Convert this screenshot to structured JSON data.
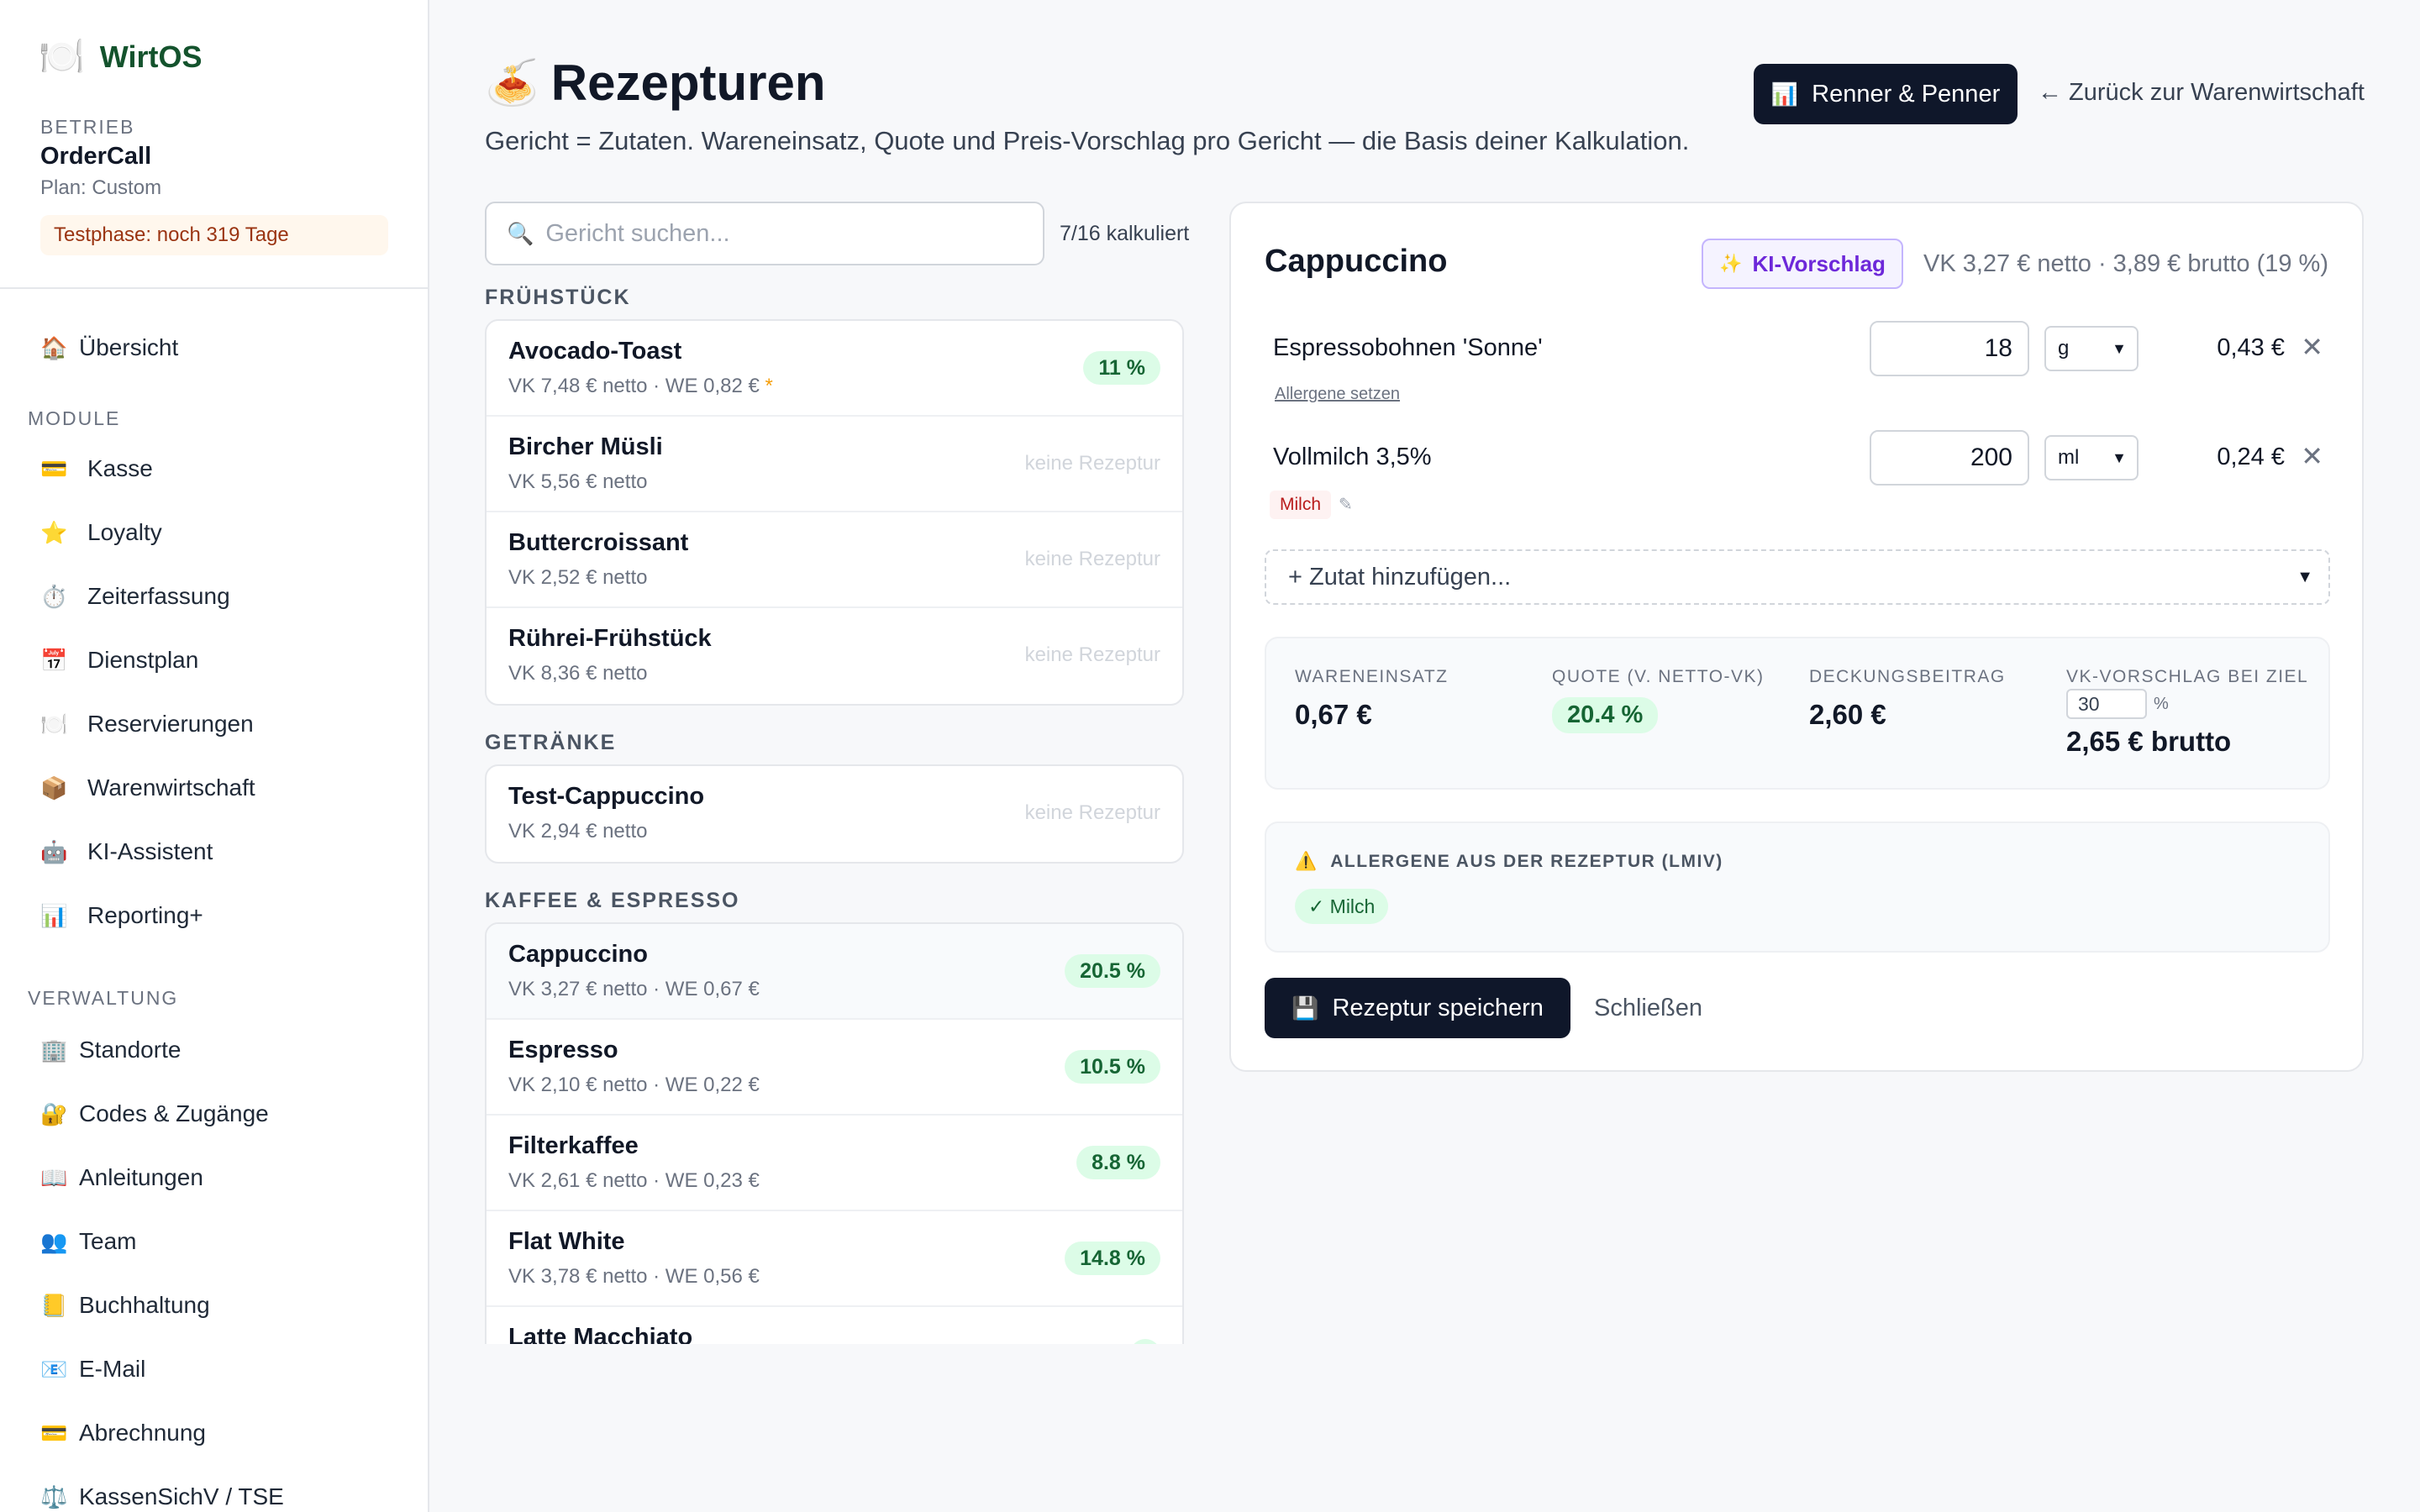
{
  "sidebar": {
    "brand_icon": "🍽️",
    "brand_name": "WirtOS",
    "betrieb_label": "BETRIEB",
    "betrieb_name": "OrderCall",
    "plan": "Plan: Custom",
    "trial": "Testphase: noch 319 Tage",
    "overview": {
      "icon": "🏠",
      "label": "Übersicht"
    },
    "module_label": "MODULE",
    "modules": [
      {
        "icon": "💳",
        "label": "Kasse"
      },
      {
        "icon": "⭐",
        "label": "Loyalty"
      },
      {
        "icon": "⏱️",
        "label": "Zeiterfassung"
      },
      {
        "icon": "📅",
        "label": "Dienstplan"
      },
      {
        "icon": "🍽️",
        "label": "Reservierungen"
      },
      {
        "icon": "📦",
        "label": "Warenwirtschaft"
      },
      {
        "icon": "🤖",
        "label": "KI-Assistent"
      },
      {
        "icon": "📊",
        "label": "Reporting+"
      }
    ],
    "admin_label": "VERWALTUNG",
    "admin": [
      {
        "icon": "🏢",
        "label": "Standorte"
      },
      {
        "icon": "🔐",
        "label": "Codes & Zugänge"
      },
      {
        "icon": "📖",
        "label": "Anleitungen"
      },
      {
        "icon": "👥",
        "label": "Team"
      },
      {
        "icon": "📒",
        "label": "Buchhaltung"
      },
      {
        "icon": "📧",
        "label": "E-Mail"
      },
      {
        "icon": "💳",
        "label": "Abrechnung"
      },
      {
        "icon": "⚖️",
        "label": "KassenSichV / TSE"
      }
    ]
  },
  "header": {
    "icon": "🍝",
    "title": "Rezepturen",
    "subtitle": "Gericht = Zutaten. Wareneinsatz, Quote und Preis-Vorschlag pro Gericht — die Basis deiner Kalkulation.",
    "renner_icon": "📊",
    "renner_label": "Renner & Penner",
    "back_label": "← Zurück zur Warenwirtschaft"
  },
  "search": {
    "icon": "🔍",
    "placeholder": "Gericht suchen...",
    "count": "7/16 kalkuliert"
  },
  "groups": [
    {
      "label": "FRÜHSTÜCK",
      "items": [
        {
          "name": "Avocado-Toast",
          "sub": "VK 7,48 € netto · WE 0,82 € ",
          "star": "*",
          "badge": "11 %"
        },
        {
          "name": "Bircher Müsli",
          "sub": "VK 5,56 € netto",
          "none": "keine Rezeptur"
        },
        {
          "name": "Buttercroissant",
          "sub": "VK 2,52 € netto",
          "none": "keine Rezeptur"
        },
        {
          "name": "Rührei-Frühstück",
          "sub": "VK 8,36 € netto",
          "none": "keine Rezeptur"
        }
      ]
    },
    {
      "label": "GETRÄNKE",
      "items": [
        {
          "name": "Test-Cappuccino",
          "sub": "VK 2,94 € netto",
          "none": "keine Rezeptur"
        }
      ]
    },
    {
      "label": "KAFFEE & ESPRESSO",
      "items": [
        {
          "name": "Cappuccino",
          "sub": "VK 3,27 € netto · WE 0,67 €",
          "badge": "20.5 %"
        },
        {
          "name": "Espresso",
          "sub": "VK 2,10 € netto · WE 0,22 €",
          "badge": "10.5 %"
        },
        {
          "name": "Filterkaffee",
          "sub": "VK 2,61 € netto · WE 0,23 €",
          "badge": "8.8 %"
        },
        {
          "name": "Flat White",
          "sub": "VK 3,78 € netto · WE 0,56 €",
          "badge": "14.8 %"
        },
        {
          "name": "Latte Macchiato",
          "sub": "",
          "badge": ""
        }
      ]
    }
  ],
  "detail": {
    "title": "Cappuccino",
    "ki_icon": "✨",
    "ki_label": "KI-Vorschlag",
    "vk_info": "VK 3,27 € netto · 3,89 € brutto (19 %)",
    "ingredients": [
      {
        "name": "Espressobohnen 'Sonne'",
        "qty": "18",
        "unit": "g",
        "cost": "0,43 €",
        "allergen_link": "Allergene setzen"
      },
      {
        "name": "Vollmilch 3,5%",
        "qty": "200",
        "unit": "ml",
        "cost": "0,24 €",
        "allergen_tag": "Milch",
        "edit_icon": "✎"
      }
    ],
    "remove_icon": "✕",
    "add_label": "+ Zutat hinzufügen...",
    "stats": {
      "we_label": "WARENEINSATZ",
      "we_value": "0,67 €",
      "quote_label": "QUOTE (V. NETTO-VK)",
      "quote_value": "20.4 %",
      "db_label": "DECKUNGSBEITRAG",
      "db_value": "2,60 €",
      "vk_label": "VK-VORSCHLAG BEI ZIEL",
      "ziel_value": "30",
      "ziel_unit": "%",
      "vk_value": "2,65 € brutto"
    },
    "allergens": {
      "icon": "⚠️",
      "header": "ALLERGENE AUS DER REZEPTUR (LMIV)",
      "tag": "✓ Milch"
    },
    "save_icon": "💾",
    "save_label": "Rezeptur speichern",
    "close_label": "Schließen"
  },
  "colors": {
    "accent_dark": "#0f172a",
    "green_pill": "#dcfce7",
    "violet": "#6d28d9"
  }
}
